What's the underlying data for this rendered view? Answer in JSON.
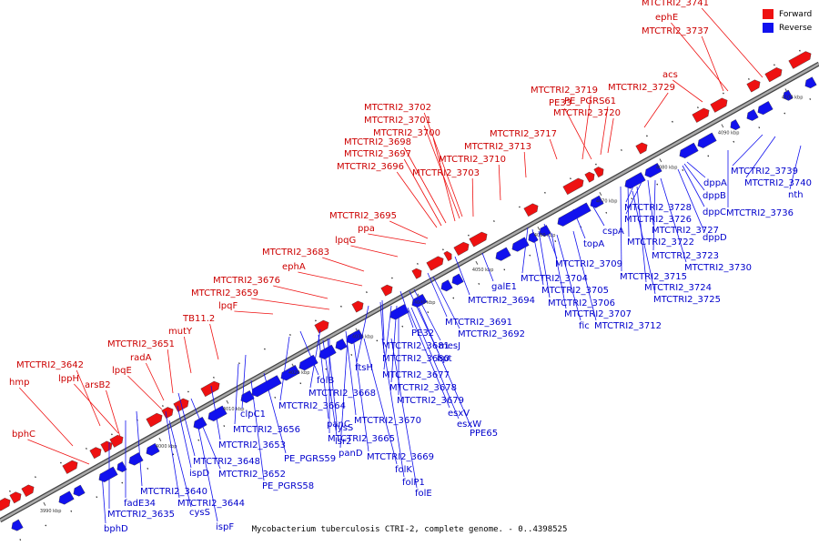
{
  "caption": "Mycobacterium tuberculosis CTRI-2, complete genome. - 0..4398525",
  "legend": [
    {
      "label": "Forward",
      "color": "#ee1111"
    },
    {
      "label": "Reverse",
      "color": "#1111ee"
    }
  ],
  "colors": {
    "forward": "#ee1111",
    "reverse": "#1111ee",
    "backbone": "#777777",
    "label_forward": "#cc0000",
    "label_reverse": "#0000cc"
  },
  "ticks": [
    "3990 kbp",
    "4000 kbp",
    "4010 kbp",
    "4020 kbp",
    "4030 kbp",
    "4040 kbp",
    "4050 kbp",
    "4060 kbp",
    "4070 kbp",
    "4080 kbp",
    "4090 kbp",
    "4100 kbp"
  ],
  "forward_labels": [
    "MTCTRI2_3741",
    "ephE",
    "MTCTRI2_3737",
    "acs",
    "MTCTRI2_3729",
    "MTCTRI2_3719",
    "PE33",
    "PE_PGRS61",
    "MTCTRI2_3720",
    "MTCTRI2_3717",
    "MTCTRI2_3713",
    "MTCTRI2_3710",
    "MTCTRI2_3702",
    "MTCTRI2_3701",
    "MTCTRI2_3700",
    "MTCTRI2_3698",
    "MTCTRI2_3697",
    "MTCTRI2_3696",
    "MTCTRI2_3703",
    "MTCTRI2_3695",
    "ppa",
    "lpqG",
    "MTCTRI2_3683",
    "ephA",
    "MTCTRI2_3676",
    "MTCTRI2_3659",
    "lpqF",
    "TB11.2",
    "mutY",
    "MTCTRI2_3651",
    "radA",
    "lpqE",
    "MTCTRI2_3642",
    "lppH",
    "arsB2",
    "hmp",
    "bphC"
  ],
  "reverse_labels": [
    "MTCTRI2_3739",
    "MTCTRI2_3740",
    "nth",
    "dppA",
    "dppB",
    "dppC",
    "dppD",
    "MTCTRI2_3736",
    "MTCTRI2_3728",
    "MTCTRI2_3726",
    "MTCTRI2_3727",
    "MTCTRI2_3722",
    "MTCTRI2_3723",
    "MTCTRI2_3730",
    "MTCTRI2_3715",
    "MTCTRI2_3724",
    "MTCTRI2_3725",
    "cspA",
    "topA",
    "MTCTRI2_3709",
    "MTCTRI2_3704",
    "MTCTRI2_3705",
    "MTCTRI2_3706",
    "MTCTRI2_3707",
    "fic",
    "MTCTRI2_3712",
    "galE1",
    "MTCTRI2_3694",
    "MTCTRI2_3691",
    "MTCTRI2_3692",
    "PE32",
    "mesJ",
    "hpt",
    "MTCTRI2_3681",
    "MTCTRI2_3680",
    "ftsH",
    "MTCTRI2_3677",
    "MTCTRI2_3678",
    "MTCTRI2_3679",
    "esxV",
    "esxW",
    "PPE65",
    "folB",
    "MTCTRI2_3668",
    "MTCTRI2_3664",
    "MTCTRI2_3670",
    "clpC1",
    "MTCTRI2_3656",
    "lysS",
    "panC",
    "lsr2",
    "MTCTRI2_3665",
    "panD",
    "MTCTRI2_3669",
    "folK",
    "folP1",
    "folE",
    "MTCTRI2_3653",
    "PE_PGRS59",
    "MTCTRI2_3648",
    "MTCTRI2_3652",
    "PE_PGRS58",
    "ispD",
    "MTCTRI2_3640",
    "MTCTRI2_3644",
    "fadE34",
    "cysS",
    "MTCTRI2_3635",
    "ispF",
    "bphD"
  ]
}
